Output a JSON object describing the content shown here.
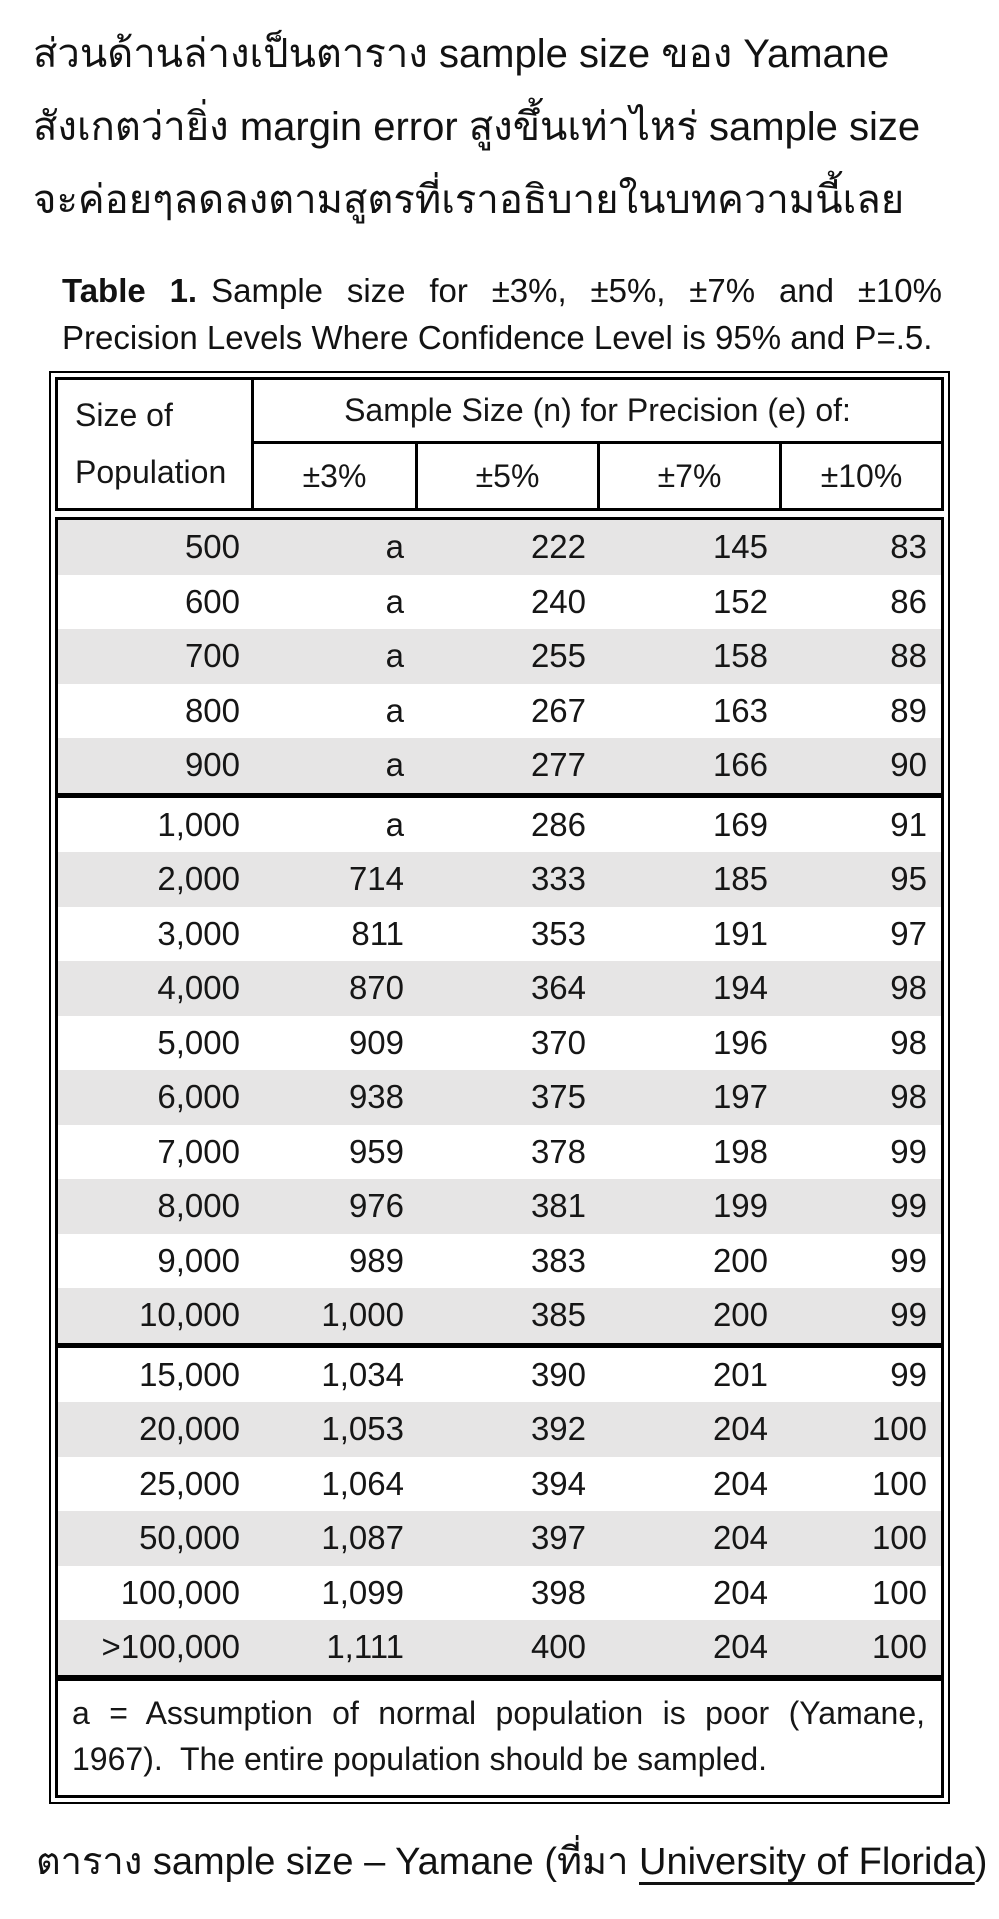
{
  "intro": {
    "lines": [
      "ส่วนด้านล่างเป็นตาราง sample size ของ Yamane",
      "สังเกตว่ายิ่ง margin error สูงขึ้นเท่าไหร่ sample size",
      "จะค่อยๆลดลงตามสูตรที่เราอธิบายในบทความนี้เลย"
    ]
  },
  "table": {
    "title_label": "Table 1.",
    "title_text": "Sample size for ±3%, ±5%, ±7% and ±10% Precision Levels Where Confidence Level is 95% and P=.5.",
    "header": {
      "col1_line1": "Size of",
      "col1_line2": "Population",
      "span_label": "Sample Size (n) for Precision (e) of:",
      "precision_cols": [
        "±3%",
        "±5%",
        "±7%",
        "±10%"
      ]
    },
    "rows": [
      {
        "population": "500",
        "values": [
          "a",
          "222",
          "145",
          "83"
        ]
      },
      {
        "population": "600",
        "values": [
          "a",
          "240",
          "152",
          "86"
        ]
      },
      {
        "population": "700",
        "values": [
          "a",
          "255",
          "158",
          "88"
        ]
      },
      {
        "population": "800",
        "values": [
          "a",
          "267",
          "163",
          "89"
        ]
      },
      {
        "population": "900",
        "values": [
          "a",
          "277",
          "166",
          "90"
        ]
      },
      {
        "population": "1,000",
        "values": [
          "a",
          "286",
          "169",
          "91"
        ]
      },
      {
        "population": "2,000",
        "values": [
          "714",
          "333",
          "185",
          "95"
        ]
      },
      {
        "population": "3,000",
        "values": [
          "811",
          "353",
          "191",
          "97"
        ]
      },
      {
        "population": "4,000",
        "values": [
          "870",
          "364",
          "194",
          "98"
        ]
      },
      {
        "population": "5,000",
        "values": [
          "909",
          "370",
          "196",
          "98"
        ]
      },
      {
        "population": "6,000",
        "values": [
          "938",
          "375",
          "197",
          "98"
        ]
      },
      {
        "population": "7,000",
        "values": [
          "959",
          "378",
          "198",
          "99"
        ]
      },
      {
        "population": "8,000",
        "values": [
          "976",
          "381",
          "199",
          "99"
        ]
      },
      {
        "population": "9,000",
        "values": [
          "989",
          "383",
          "200",
          "99"
        ]
      },
      {
        "population": "10,000",
        "values": [
          "1,000",
          "385",
          "200",
          "99"
        ]
      },
      {
        "population": "15,000",
        "values": [
          "1,034",
          "390",
          "201",
          "99"
        ]
      },
      {
        "population": "20,000",
        "values": [
          "1,053",
          "392",
          "204",
          "100"
        ]
      },
      {
        "population": "25,000",
        "values": [
          "1,064",
          "394",
          "204",
          "100"
        ]
      },
      {
        "population": "50,000",
        "values": [
          "1,087",
          "397",
          "204",
          "100"
        ]
      },
      {
        "population": "100,000",
        "values": [
          "1,099",
          "398",
          "204",
          "100"
        ]
      },
      {
        "population": ">100,000",
        "values": [
          "1,111",
          "400",
          "204",
          "100"
        ]
      }
    ],
    "block_starts": [
      5,
      15
    ],
    "footnote": "a = Assumption of normal population is poor (Yamane, 1967).  The entire population should be sampled.",
    "colors": {
      "row_shade": "#e6e5e5",
      "border": "#000000",
      "text": "#161616",
      "background": "#ffffff"
    }
  },
  "caption": {
    "prefix": "ตาราง sample size – Yamane (ที่มา ",
    "link": "University of Florida",
    "suffix": ")"
  }
}
